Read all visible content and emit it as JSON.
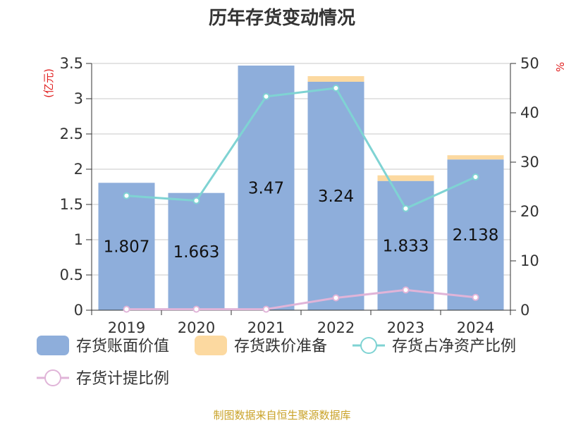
{
  "chart_data": {
    "type": "bar",
    "title": "历年存货变动情况",
    "ylabel_left": "(亿元)",
    "ylabel_right": "%",
    "categories": [
      "2019",
      "2020",
      "2021",
      "2022",
      "2023",
      "2024"
    ],
    "ylim_left": [
      0,
      3.5
    ],
    "ylim_right": [
      0,
      50
    ],
    "yticks_left": [
      "0",
      "0.5",
      "1",
      "1.5",
      "2",
      "2.5",
      "3",
      "3.5"
    ],
    "yticks_right": [
      "0",
      "10",
      "20",
      "30",
      "40",
      "50"
    ],
    "grid": true,
    "legend_position": "bottom",
    "series": [
      {
        "name": "存货账面价值",
        "type": "bar",
        "axis": "left",
        "color": "#8eaedb",
        "values": [
          1.807,
          1.663,
          3.47,
          3.24,
          1.833,
          2.138
        ],
        "labels": [
          "1.807",
          "1.663",
          "3.47",
          "3.24",
          "1.833",
          "2.138"
        ]
      },
      {
        "name": "存货跌价准备",
        "type": "bar",
        "axis": "left",
        "color": "#fcd9a0",
        "values": [
          0,
          0,
          0,
          0.08,
          0.08,
          0.06
        ]
      },
      {
        "name": "存货占净资产比例",
        "type": "line",
        "axis": "right",
        "color": "#7fd3d3",
        "values": [
          23.2,
          22.2,
          43.3,
          45.0,
          20.6,
          27.0
        ]
      },
      {
        "name": "存货计提比例",
        "type": "line",
        "axis": "right",
        "color": "#e0b4d8",
        "values": [
          0.2,
          0.2,
          0.2,
          2.5,
          4.1,
          2.6
        ]
      }
    ],
    "source": "制图数据来自恒生聚源数据库"
  }
}
